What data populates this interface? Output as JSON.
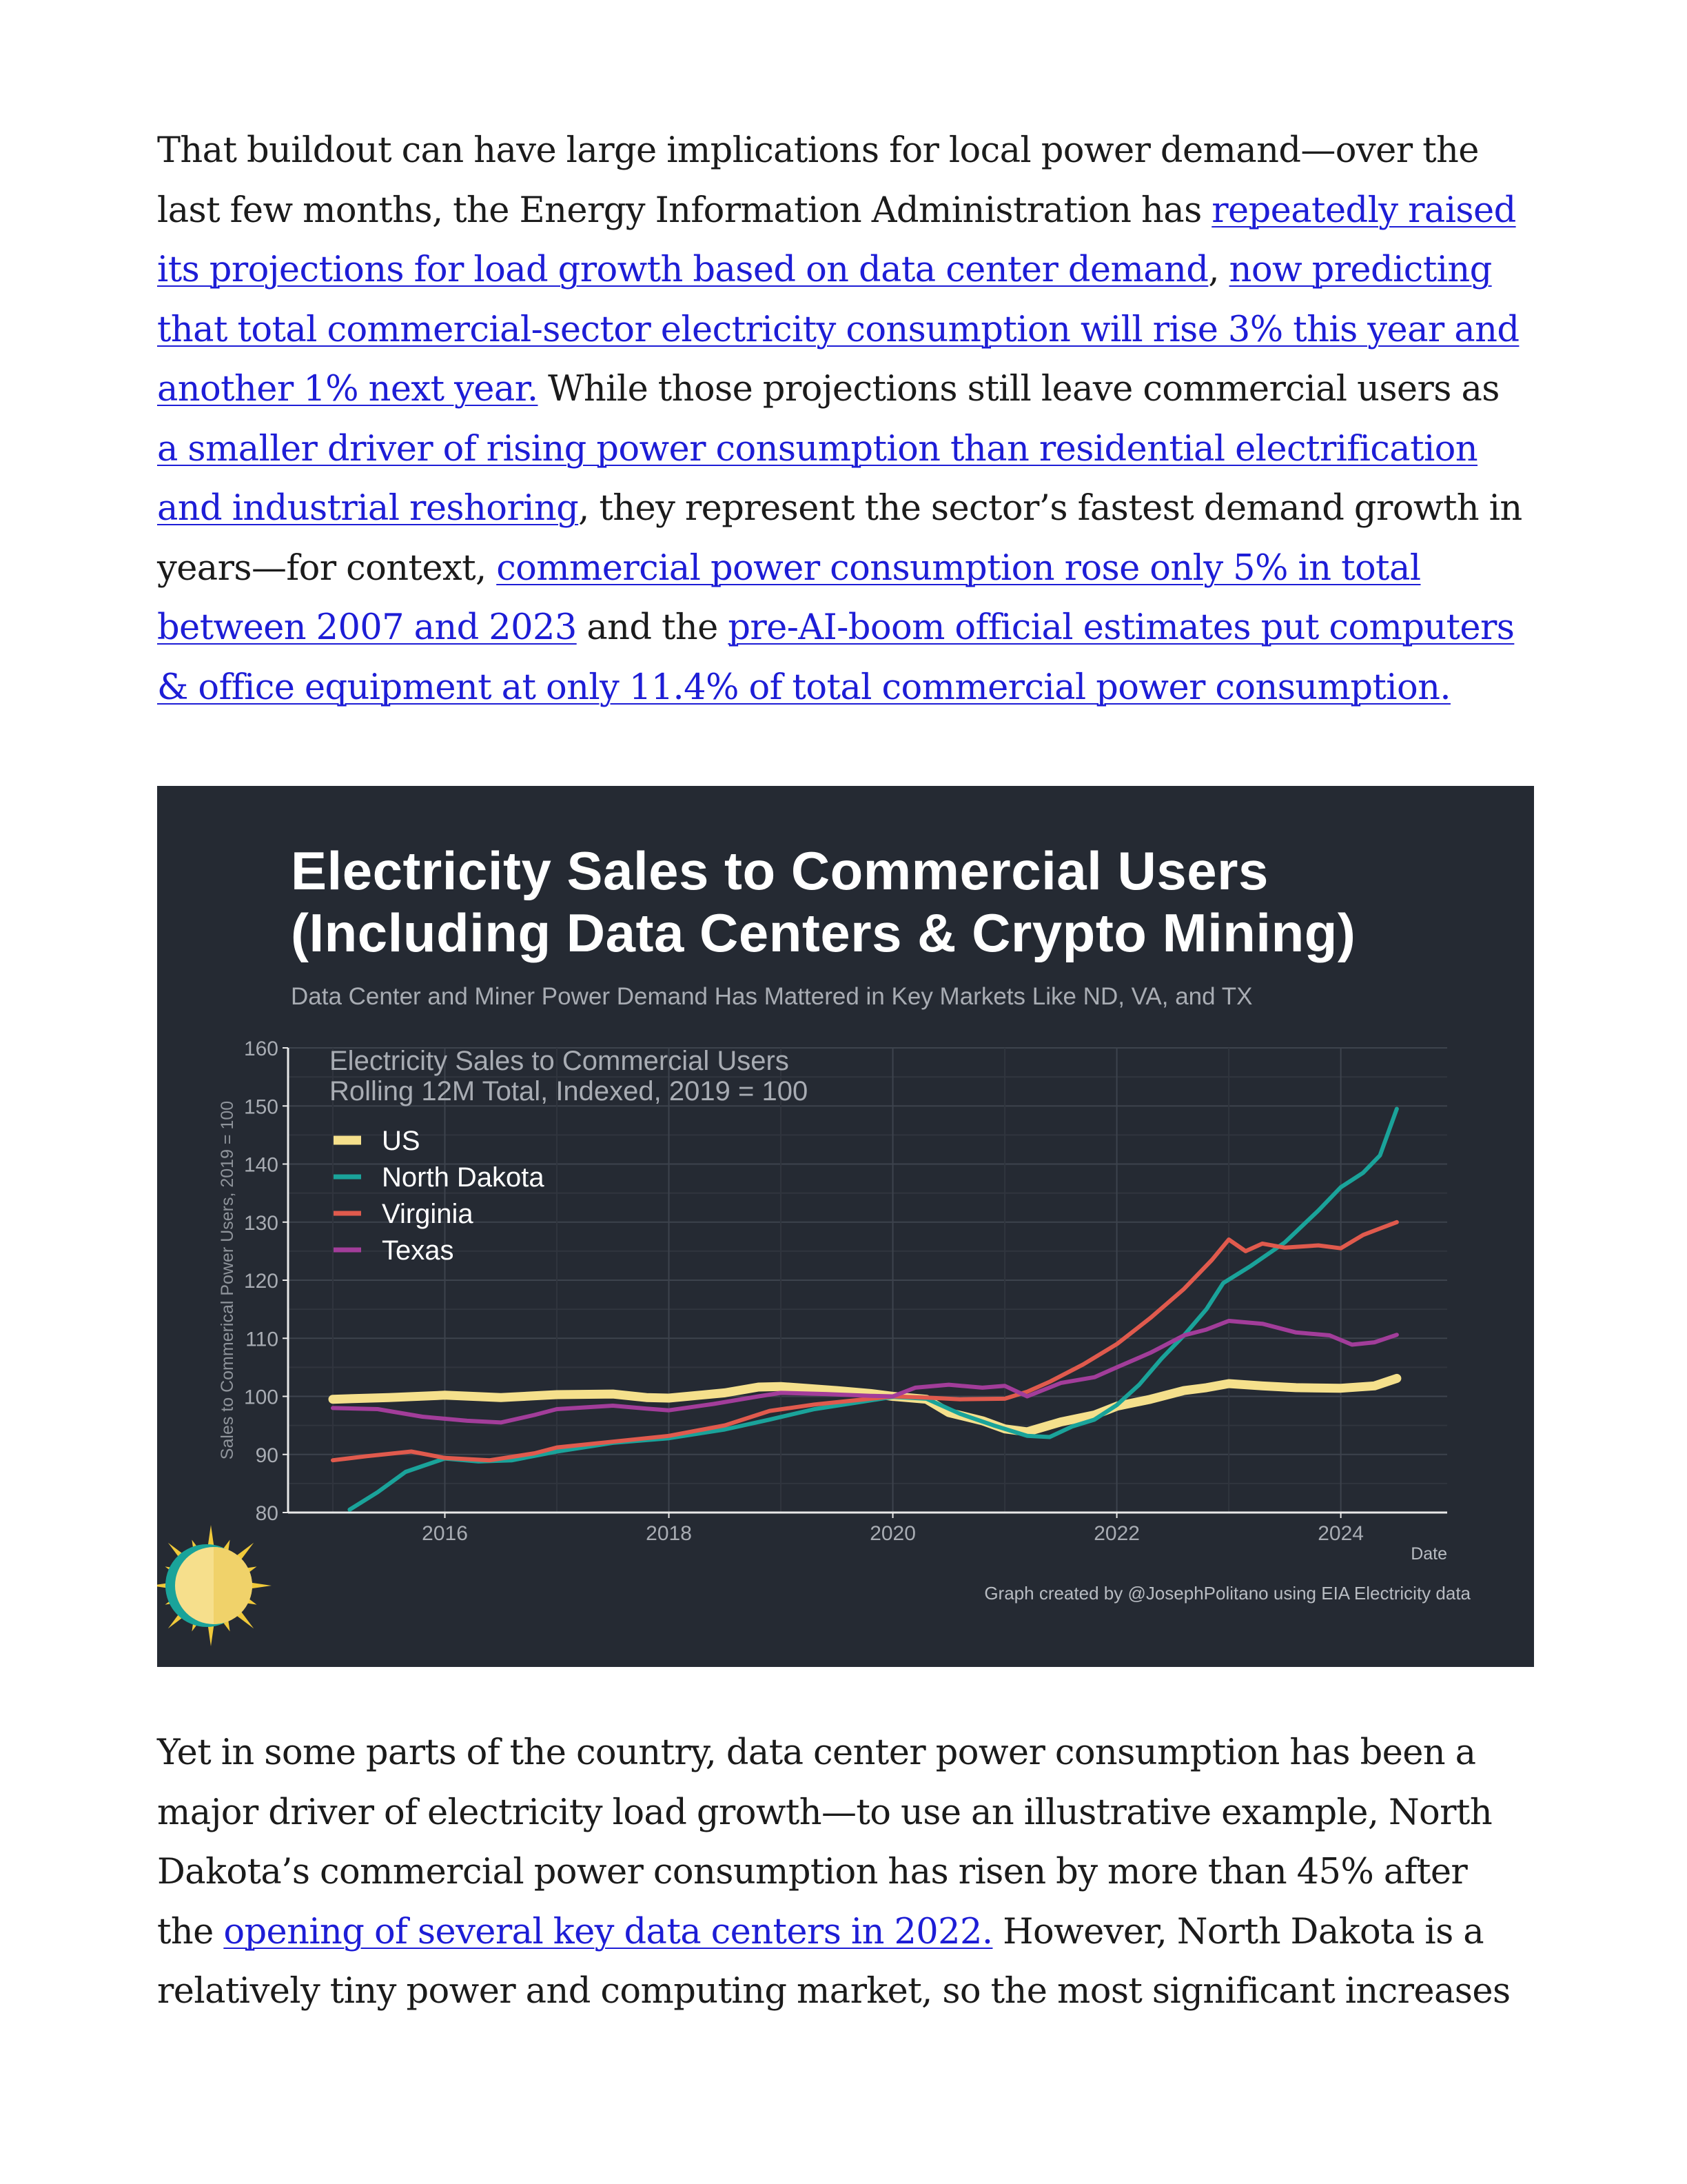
{
  "article": {
    "p1": [
      {
        "t": "That buildout can have large implications for local power demand—over the last few months, the Energy Information Administration has "
      },
      {
        "t": "repeatedly raised its projections for load growth based on data center demand",
        "link": true
      },
      {
        "t": ", "
      },
      {
        "t": "now predicting that total commercial-sector electricity consumption will rise 3% this year and another 1% next year.",
        "link": true
      },
      {
        "t": " While those projections still leave commercial users as "
      },
      {
        "t": "a smaller driver of rising power consumption than residential electrification and industrial reshoring",
        "link": true
      },
      {
        "t": ", they represent the sector’s fastest demand growth in years—for context, "
      },
      {
        "t": "commercial power consumption rose only 5% in total between 2007 and 2023",
        "link": true
      },
      {
        "t": " and the "
      },
      {
        "t": "pre-AI-boom official estimates put computers & office equipment at only 11.4% of total commercial power consumption.",
        "link": true
      }
    ],
    "p2": [
      {
        "t": "Yet in some parts of the country, data center power consumption has been a major driver of electricity load growth—to use an illustrative example, North Dakota’s commercial power consumption has risen by more than 45% after the "
      },
      {
        "t": "opening of several key data centers in 2022.",
        "link": true
      },
      {
        "t": " However, North Dakota is a relatively tiny power and computing market, so the most significant increases"
      }
    ]
  },
  "figure": {
    "title_line1": "Electricity Sales to Commercial Users",
    "title_line2": "(Including Data Centers & Crypto Mining)",
    "subtitle": "Data Center and Miner Power Demand Has Mattered in Key Markets Like ND, VA, and TX",
    "credit": "Graph created by @JosephPolitano using EIA Electricity data",
    "logo_icon": "sun-logo-icon",
    "background": "#252a33"
  },
  "chart_data": {
    "type": "line",
    "inner_title_line1": "Electricity Sales to Commercial Users",
    "inner_title_line2": "Rolling 12M Total, Indexed, 2019 = 100",
    "xlabel": "Date",
    "ylabel": "Sales to Commerical Power Users, 2019 = 100",
    "xlim": [
      2014.6,
      2024.95
    ],
    "ylim": [
      80,
      160
    ],
    "xticks": [
      2016,
      2018,
      2020,
      2022,
      2024
    ],
    "yticks": [
      80,
      90,
      100,
      110,
      120,
      130,
      140,
      150,
      160
    ],
    "grid": true,
    "legend_position": "top-left",
    "series": [
      {
        "name": "US",
        "color": "#f5e08c",
        "width": 13,
        "points": [
          [
            2015.0,
            99.5
          ],
          [
            2015.5,
            99.8
          ],
          [
            2016.0,
            100.2
          ],
          [
            2016.5,
            99.8
          ],
          [
            2017.0,
            100.3
          ],
          [
            2017.5,
            100.4
          ],
          [
            2017.8,
            99.8
          ],
          [
            2018.0,
            99.7
          ],
          [
            2018.5,
            100.6
          ],
          [
            2018.8,
            101.6
          ],
          [
            2019.0,
            101.7
          ],
          [
            2019.5,
            101.0
          ],
          [
            2019.8,
            100.5
          ],
          [
            2020.0,
            100.0
          ],
          [
            2020.3,
            99.5
          ],
          [
            2020.5,
            97.2
          ],
          [
            2020.8,
            95.8
          ],
          [
            2021.0,
            94.4
          ],
          [
            2021.2,
            93.9
          ],
          [
            2021.5,
            95.6
          ],
          [
            2021.8,
            96.8
          ],
          [
            2022.0,
            98.3
          ],
          [
            2022.3,
            99.5
          ],
          [
            2022.6,
            101.0
          ],
          [
            2022.8,
            101.5
          ],
          [
            2023.0,
            102.2
          ],
          [
            2023.3,
            101.8
          ],
          [
            2023.6,
            101.5
          ],
          [
            2024.0,
            101.4
          ],
          [
            2024.3,
            101.8
          ],
          [
            2024.5,
            103.1
          ]
        ]
      },
      {
        "name": "North Dakota",
        "color": "#1aa39a",
        "width": 6,
        "points": [
          [
            2015.15,
            80.5
          ],
          [
            2015.4,
            83.5
          ],
          [
            2015.65,
            87.0
          ],
          [
            2016.0,
            89.3
          ],
          [
            2016.3,
            88.8
          ],
          [
            2016.6,
            89.0
          ],
          [
            2017.0,
            90.5
          ],
          [
            2017.5,
            92.0
          ],
          [
            2018.0,
            92.8
          ],
          [
            2018.5,
            94.3
          ],
          [
            2018.9,
            96.0
          ],
          [
            2019.3,
            97.8
          ],
          [
            2019.7,
            99.0
          ],
          [
            2020.0,
            99.9
          ],
          [
            2020.3,
            99.6
          ],
          [
            2020.6,
            97.0
          ],
          [
            2020.9,
            95.0
          ],
          [
            2021.2,
            93.2
          ],
          [
            2021.4,
            93.0
          ],
          [
            2021.6,
            94.8
          ],
          [
            2021.8,
            96.0
          ],
          [
            2022.0,
            98.5
          ],
          [
            2022.2,
            102.0
          ],
          [
            2022.4,
            106.5
          ],
          [
            2022.6,
            110.5
          ],
          [
            2022.8,
            115.0
          ],
          [
            2022.95,
            119.5
          ],
          [
            2023.2,
            122.5
          ],
          [
            2023.5,
            126.5
          ],
          [
            2023.8,
            132.0
          ],
          [
            2024.0,
            136.0
          ],
          [
            2024.2,
            138.5
          ],
          [
            2024.35,
            141.5
          ],
          [
            2024.5,
            149.5
          ]
        ]
      },
      {
        "name": "Virginia",
        "color": "#e05a4d",
        "width": 6,
        "points": [
          [
            2015.0,
            89.0
          ],
          [
            2015.3,
            89.7
          ],
          [
            2015.7,
            90.5
          ],
          [
            2016.0,
            89.4
          ],
          [
            2016.4,
            89.0
          ],
          [
            2016.8,
            90.2
          ],
          [
            2017.0,
            91.2
          ],
          [
            2017.5,
            92.2
          ],
          [
            2018.0,
            93.2
          ],
          [
            2018.5,
            95.0
          ],
          [
            2018.9,
            97.5
          ],
          [
            2019.3,
            98.6
          ],
          [
            2019.7,
            99.4
          ],
          [
            2020.0,
            100.0
          ],
          [
            2020.3,
            99.8
          ],
          [
            2020.6,
            99.5
          ],
          [
            2021.0,
            99.6
          ],
          [
            2021.2,
            100.8
          ],
          [
            2021.4,
            102.5
          ],
          [
            2021.7,
            105.5
          ],
          [
            2022.0,
            109.0
          ],
          [
            2022.3,
            113.5
          ],
          [
            2022.6,
            118.5
          ],
          [
            2022.85,
            123.5
          ],
          [
            2023.0,
            127.0
          ],
          [
            2023.15,
            125.0
          ],
          [
            2023.3,
            126.3
          ],
          [
            2023.5,
            125.6
          ],
          [
            2023.8,
            126.0
          ],
          [
            2024.0,
            125.5
          ],
          [
            2024.2,
            127.8
          ],
          [
            2024.35,
            128.9
          ],
          [
            2024.5,
            130.0
          ]
        ]
      },
      {
        "name": "Texas",
        "color": "#a23d9a",
        "width": 6,
        "points": [
          [
            2015.0,
            98.0
          ],
          [
            2015.4,
            97.8
          ],
          [
            2015.8,
            96.5
          ],
          [
            2016.2,
            95.8
          ],
          [
            2016.5,
            95.5
          ],
          [
            2016.8,
            96.8
          ],
          [
            2017.0,
            97.8
          ],
          [
            2017.5,
            98.4
          ],
          [
            2017.8,
            97.9
          ],
          [
            2018.0,
            97.6
          ],
          [
            2018.4,
            98.7
          ],
          [
            2018.8,
            100.0
          ],
          [
            2019.0,
            100.6
          ],
          [
            2019.4,
            100.4
          ],
          [
            2019.8,
            100.1
          ],
          [
            2020.0,
            100.0
          ],
          [
            2020.2,
            101.5
          ],
          [
            2020.5,
            102.0
          ],
          [
            2020.8,
            101.5
          ],
          [
            2021.0,
            101.8
          ],
          [
            2021.2,
            100.0
          ],
          [
            2021.5,
            102.3
          ],
          [
            2021.8,
            103.3
          ],
          [
            2022.0,
            105.0
          ],
          [
            2022.3,
            107.5
          ],
          [
            2022.6,
            110.5
          ],
          [
            2022.8,
            111.5
          ],
          [
            2023.0,
            113.0
          ],
          [
            2023.3,
            112.5
          ],
          [
            2023.6,
            111.0
          ],
          [
            2023.9,
            110.5
          ],
          [
            2024.1,
            108.9
          ],
          [
            2024.3,
            109.3
          ],
          [
            2024.5,
            110.6
          ]
        ]
      }
    ]
  }
}
